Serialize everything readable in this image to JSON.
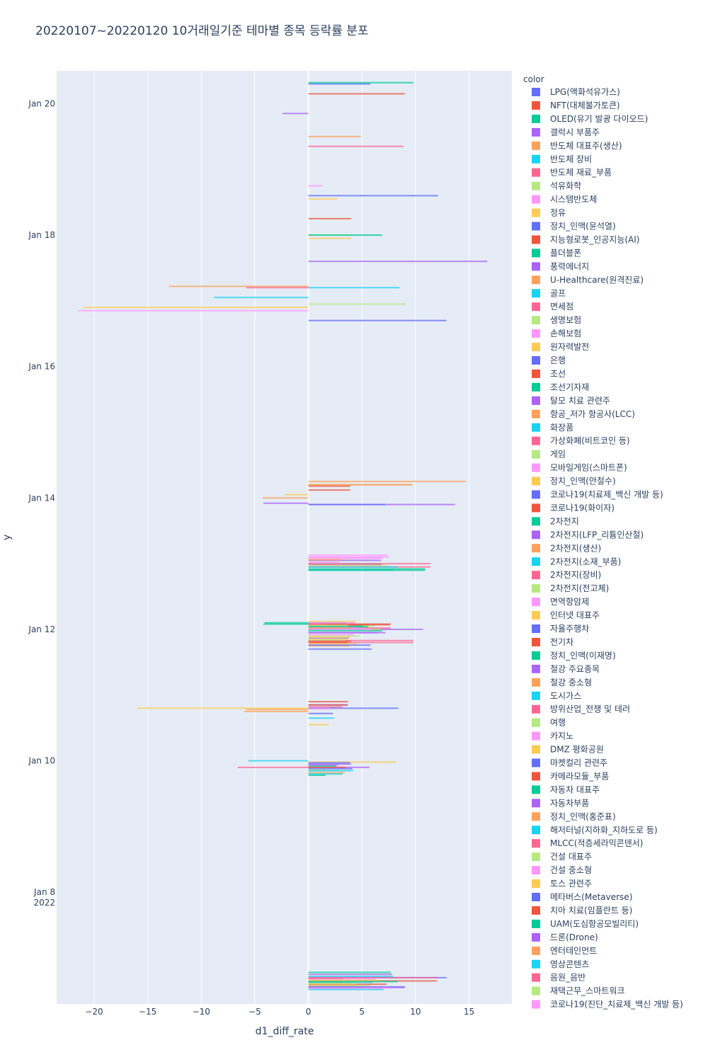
{
  "chart_data": {
    "type": "bar",
    "orientation": "horizontal",
    "title": "20220107~20220120 10거래일기준 테마별 종목 등락률 분포",
    "xlabel": "d1_diff_rate",
    "ylabel": "y",
    "legend_title": "color",
    "xlim": [
      -23.5,
      19
    ],
    "x_ticks": [
      {
        "value": -20,
        "label": "−20"
      },
      {
        "value": -15,
        "label": "−15"
      },
      {
        "value": -10,
        "label": "−10"
      },
      {
        "value": -5,
        "label": "−5"
      },
      {
        "value": 0,
        "label": "0"
      },
      {
        "value": 5,
        "label": "5"
      },
      {
        "value": 10,
        "label": "10"
      },
      {
        "value": 15,
        "label": "15"
      }
    ],
    "ylim_days": [
      6.3,
      20.5
    ],
    "y_ticks": [
      {
        "value": 20,
        "label": "Jan 20"
      },
      {
        "value": 18,
        "label": "Jan 18"
      },
      {
        "value": 16,
        "label": "Jan 16"
      },
      {
        "value": 14,
        "label": "Jan 14"
      },
      {
        "value": 12,
        "label": "Jan 12"
      },
      {
        "value": 10,
        "label": "Jan 10"
      },
      {
        "value": 8,
        "label": "Jan 8",
        "sublabel": "2022"
      }
    ],
    "palette": [
      "#636efa",
      "#EF553B",
      "#00cc96",
      "#ab63fa",
      "#FFA15A",
      "#19d3f3",
      "#FF6692",
      "#B6E880",
      "#FF97FF",
      "#FECB52"
    ],
    "series": [
      {
        "name": "LPG(액화석유가스)",
        "values": [
          {
            "date": 20.3,
            "value": 5.8
          },
          {
            "date": 12.1,
            "value": 3.5
          }
        ]
      },
      {
        "name": "NFT(대체불가토큰)",
        "values": [
          {
            "date": 20.15,
            "value": 9.0
          },
          {
            "date": 10.9,
            "value": 3.7
          }
        ]
      },
      {
        "name": "OLED(유기 발광 다이오드)",
        "values": [
          {
            "date": 20.32,
            "value": 9.8
          },
          {
            "date": 12.08,
            "value": -4.2
          }
        ]
      },
      {
        "name": "갤럭시 부품주",
        "values": [
          {
            "date": 19.85,
            "value": -2.4
          },
          {
            "date": 12.0,
            "value": 10.7
          }
        ]
      },
      {
        "name": "반도체 대표주(생산)",
        "values": [
          {
            "date": 19.5,
            "value": 4.9
          },
          {
            "date": 14.2,
            "value": 9.7
          }
        ]
      },
      {
        "name": "반도체 장비",
        "values": [
          {
            "date": 17.2,
            "value": 8.5
          },
          {
            "date": 12.9,
            "value": 7.9
          }
        ]
      },
      {
        "name": "반도체 재료_부품",
        "values": [
          {
            "date": 19.35,
            "value": 8.9
          },
          {
            "date": 12.95,
            "value": 11.4
          }
        ]
      },
      {
        "name": "석유화학",
        "values": [
          {
            "date": 18.0,
            "value": 4.0
          },
          {
            "date": 9.8,
            "value": 3.1
          }
        ]
      },
      {
        "name": "시스템반도체",
        "values": [
          {
            "date": 18.75,
            "value": 1.3
          },
          {
            "date": 13.1,
            "value": 7.5
          }
        ]
      },
      {
        "name": "정유",
        "values": [
          {
            "date": 18.55,
            "value": 2.7
          },
          {
            "date": 17.95,
            "value": 4.0
          }
        ]
      },
      {
        "name": "정치_인맥(윤석열)",
        "values": [
          {
            "date": 18.6,
            "value": 12.1
          },
          {
            "date": 16.7,
            "value": 12.9
          }
        ]
      },
      {
        "name": "지능형로봇_인공지능(AI)",
        "values": [
          {
            "date": 18.25,
            "value": 4.0
          },
          {
            "date": 12.07,
            "value": 7.6
          }
        ]
      },
      {
        "name": "플더블폰",
        "values": [
          {
            "date": 18.0,
            "value": 6.9
          },
          {
            "date": 12.9,
            "value": 10.9
          }
        ]
      },
      {
        "name": "풍력에너지",
        "values": [
          {
            "date": 17.6,
            "value": 16.7
          },
          {
            "date": 13.9,
            "value": 13.7
          }
        ]
      },
      {
        "name": "U-Healthcare(원격진료)",
        "values": [
          {
            "date": 17.22,
            "value": -13.0
          },
          {
            "date": 14.0,
            "value": -4.3
          }
        ]
      },
      {
        "name": "골프",
        "values": [
          {
            "date": 17.05,
            "value": -8.8
          },
          {
            "date": 13.0,
            "value": 6.8
          }
        ]
      },
      {
        "name": "면세점",
        "values": [
          {
            "date": 17.2,
            "value": -5.8
          },
          {
            "date": 12.98,
            "value": 6.9
          }
        ]
      },
      {
        "name": "생명보험",
        "values": [
          {
            "date": 16.95,
            "value": 9.1
          },
          {
            "date": 12.0,
            "value": 6.8
          }
        ]
      },
      {
        "name": "손해보험",
        "values": [
          {
            "date": 16.85,
            "value": -21.5
          },
          {
            "date": 13.1,
            "value": 7.0
          }
        ]
      },
      {
        "name": "원자력발전",
        "values": [
          {
            "date": 16.9,
            "value": -21.0
          },
          {
            "date": 10.8,
            "value": -16.0
          }
        ]
      },
      {
        "name": "은행",
        "values": [
          {
            "date": 13.9,
            "value": 7.2
          },
          {
            "date": 11.7,
            "value": 5.9
          }
        ]
      },
      {
        "name": "조선",
        "values": [
          {
            "date": 14.18,
            "value": 3.9
          },
          {
            "date": 12.07,
            "value": 5.6
          }
        ]
      },
      {
        "name": "조선기자재",
        "values": [
          {
            "date": 12.1,
            "value": -4.1
          },
          {
            "date": 9.78,
            "value": 1.6
          }
        ]
      },
      {
        "name": "탈모 치료 관련주",
        "values": [
          {
            "date": 13.92,
            "value": -4.2
          },
          {
            "date": 9.9,
            "value": 5.7
          }
        ]
      },
      {
        "name": "항공_저가 항공사(LCC)",
        "values": [
          {
            "date": 14.25,
            "value": 14.7
          },
          {
            "date": 11.75,
            "value": 3.8
          }
        ]
      },
      {
        "name": "화장품",
        "values": [
          {
            "date": 10.0,
            "value": -5.6
          },
          {
            "date": 9.85,
            "value": 4.2
          }
        ]
      },
      {
        "name": "가상화폐(비트코인 등)",
        "values": [
          {
            "date": 12.02,
            "value": 7.7
          },
          {
            "date": 11.8,
            "value": 9.8
          }
        ]
      },
      {
        "name": "게임",
        "values": [
          {
            "date": 13.05,
            "value": 5.8
          },
          {
            "date": 12.05,
            "value": 6.2
          }
        ]
      },
      {
        "name": "모바일게임(스마트폰)",
        "values": [
          {
            "date": 13.08,
            "value": 6.9
          },
          {
            "date": 12.1,
            "value": 4.4
          }
        ]
      },
      {
        "name": "정치_인맥(안철수)",
        "values": [
          {
            "date": 14.05,
            "value": -2.2
          },
          {
            "date": 9.98,
            "value": 8.2
          }
        ]
      },
      {
        "name": "코로나19(치료제_백신 개발 등)",
        "values": [
          {
            "date": 10.8,
            "value": 8.4
          },
          {
            "date": 6.7,
            "value": 12.9
          }
        ]
      },
      {
        "name": "코로나19(화이자)",
        "values": [
          {
            "date": 14.12,
            "value": 3.9
          },
          {
            "date": 6.65,
            "value": 12.0
          }
        ]
      },
      {
        "name": "2차전지",
        "values": [
          {
            "date": 12.92,
            "value": 10.9
          },
          {
            "date": 6.55,
            "value": 5.2
          }
        ]
      },
      {
        "name": "2차전지(LFP_리튬인산철)",
        "values": [
          {
            "date": 13.05,
            "value": 6.8
          },
          {
            "date": 6.75,
            "value": 7.8
          }
        ]
      },
      {
        "name": "2차전지(생산)",
        "values": [
          {
            "date": 14.2,
            "value": 9.6
          },
          {
            "date": 10.75,
            "value": -6.0
          }
        ]
      },
      {
        "name": "2차전지(소재_부품)",
        "values": [
          {
            "date": 12.95,
            "value": 8.3
          },
          {
            "date": 6.72,
            "value": 7.9
          }
        ]
      },
      {
        "name": "2차전지(장비)",
        "values": [
          {
            "date": 13.0,
            "value": 11.4
          },
          {
            "date": 11.83,
            "value": 9.8
          }
        ]
      },
      {
        "name": "2차전지(전고체)",
        "values": [
          {
            "date": 12.97,
            "value": 7.5
          },
          {
            "date": 6.6,
            "value": 4.1
          }
        ]
      },
      {
        "name": "면역항암제",
        "values": [
          {
            "date": 13.13,
            "value": 7.4
          },
          {
            "date": 12.03,
            "value": 5.0
          }
        ]
      },
      {
        "name": "인터넷 대표주",
        "values": [
          {
            "date": 12.12,
            "value": 4.4
          },
          {
            "date": 11.85,
            "value": 3.7
          }
        ]
      },
      {
        "name": "자율주행차",
        "values": [
          {
            "date": 10.85,
            "value": 3.7
          },
          {
            "date": 9.88,
            "value": 4.1
          }
        ]
      },
      {
        "name": "전기차",
        "values": [
          {
            "date": 12.08,
            "value": 7.7
          },
          {
            "date": 10.85,
            "value": 3.6
          }
        ]
      },
      {
        "name": "정치_인맥(이재명)",
        "values": [
          {
            "date": 12.05,
            "value": 5.1
          },
          {
            "date": 9.92,
            "value": 2.6
          }
        ]
      },
      {
        "name": "철강 주요종목",
        "values": [
          {
            "date": 11.95,
            "value": 7.2
          },
          {
            "date": 9.95,
            "value": 4.0
          }
        ]
      },
      {
        "name": "철강 중소형",
        "values": [
          {
            "date": 10.78,
            "value": -5.8
          },
          {
            "date": 9.82,
            "value": 3.4
          }
        ]
      },
      {
        "name": "도시가스",
        "values": [
          {
            "date": 10.65,
            "value": 2.4
          },
          {
            "date": 9.8,
            "value": 3.2
          }
        ]
      },
      {
        "name": "방위산업_전쟁 및 테러",
        "values": [
          {
            "date": 12.06,
            "value": 4.5
          },
          {
            "date": 10.82,
            "value": 3.2
          }
        ]
      },
      {
        "name": "여행",
        "values": [
          {
            "date": 11.9,
            "value": 4.8
          },
          {
            "date": 9.86,
            "value": 1.7
          }
        ]
      },
      {
        "name": "카지노",
        "values": [
          {
            "date": 13.02,
            "value": 2.9
          },
          {
            "date": 10.79,
            "value": 2.0
          }
        ]
      },
      {
        "name": "DMZ 평화공원",
        "values": [
          {
            "date": 11.78,
            "value": 4.5
          },
          {
            "date": 10.55,
            "value": 1.9
          }
        ]
      },
      {
        "name": "마켓컬리 관련주",
        "values": [
          {
            "date": 10.72,
            "value": 2.3
          },
          {
            "date": 9.97,
            "value": 3.9
          }
        ]
      },
      {
        "name": "카메라모듈_부품",
        "values": [
          {
            "date": 11.82,
            "value": 4.0
          },
          {
            "date": 9.9,
            "value": 3.5
          }
        ]
      },
      {
        "name": "자동차 대표주",
        "values": [
          {
            "date": 12.04,
            "value": 5.6
          },
          {
            "date": 6.78,
            "value": 7.7
          }
        ]
      },
      {
        "name": "자동차부품",
        "values": [
          {
            "date": 11.87,
            "value": 3.8
          },
          {
            "date": 9.94,
            "value": 2.8
          }
        ]
      },
      {
        "name": "정치_인맥(홍준표)",
        "values": [
          {
            "date": 13.06,
            "value": 3.1
          },
          {
            "date": 6.62,
            "value": 3.9
          }
        ]
      },
      {
        "name": "해저터널(지하화_지하도로 등)",
        "values": [
          {
            "date": 9.85,
            "value": 3.0
          },
          {
            "date": 6.63,
            "value": 6.0
          }
        ]
      },
      {
        "name": "MLCC(적층세라믹콘덴서)",
        "values": [
          {
            "date": 9.9,
            "value": -6.6
          },
          {
            "date": 6.7,
            "value": 12.1
          }
        ]
      },
      {
        "name": "건설 대표주",
        "values": [
          {
            "date": 11.84,
            "value": 3.4
          },
          {
            "date": 6.58,
            "value": 5.8
          }
        ]
      },
      {
        "name": "건설 중소형",
        "values": [
          {
            "date": 11.92,
            "value": 4.3
          },
          {
            "date": 6.68,
            "value": 6.3
          }
        ]
      },
      {
        "name": "토스 관련주",
        "values": [
          {
            "date": 11.88,
            "value": 3.9
          },
          {
            "date": 6.66,
            "value": 6.6
          }
        ]
      },
      {
        "name": "메타버스(Metaverse)",
        "values": [
          {
            "date": 11.76,
            "value": 5.8
          },
          {
            "date": 6.56,
            "value": 9.0
          }
        ]
      },
      {
        "name": "치아 치료(임플란트 등)",
        "values": [
          {
            "date": 11.8,
            "value": 3.7
          },
          {
            "date": 6.6,
            "value": 7.3
          }
        ]
      },
      {
        "name": "UAM(도심항공모빌리티)",
        "values": [
          {
            "date": 11.98,
            "value": 6.9
          },
          {
            "date": 6.64,
            "value": 8.3
          }
        ]
      },
      {
        "name": "드론(Drone)",
        "values": [
          {
            "date": 11.95,
            "value": 6.5
          },
          {
            "date": 6.55,
            "value": 9.0
          }
        ]
      },
      {
        "name": "엔터테인먼트",
        "values": [
          {
            "date": 12.02,
            "value": 4.0
          },
          {
            "date": 6.59,
            "value": 4.7
          }
        ]
      },
      {
        "name": "영상콘텐츠",
        "values": [
          {
            "date": 12.0,
            "value": 5.2
          },
          {
            "date": 6.52,
            "value": 7.0
          }
        ]
      },
      {
        "name": "음원_음반",
        "values": [
          {
            "date": 12.08,
            "value": 1.5
          },
          {
            "date": 6.69,
            "value": 3.2
          }
        ]
      },
      {
        "name": "재택근무_스마트워크",
        "values": [
          {
            "date": 12.06,
            "value": 3.7
          },
          {
            "date": 6.61,
            "value": 4.5
          }
        ]
      },
      {
        "name": "코로나19(진단_치료제_백신 개발 등)",
        "values": [
          {
            "date": 12.0,
            "value": 5.9
          },
          {
            "date": 6.54,
            "value": 7.6
          }
        ]
      }
    ]
  }
}
